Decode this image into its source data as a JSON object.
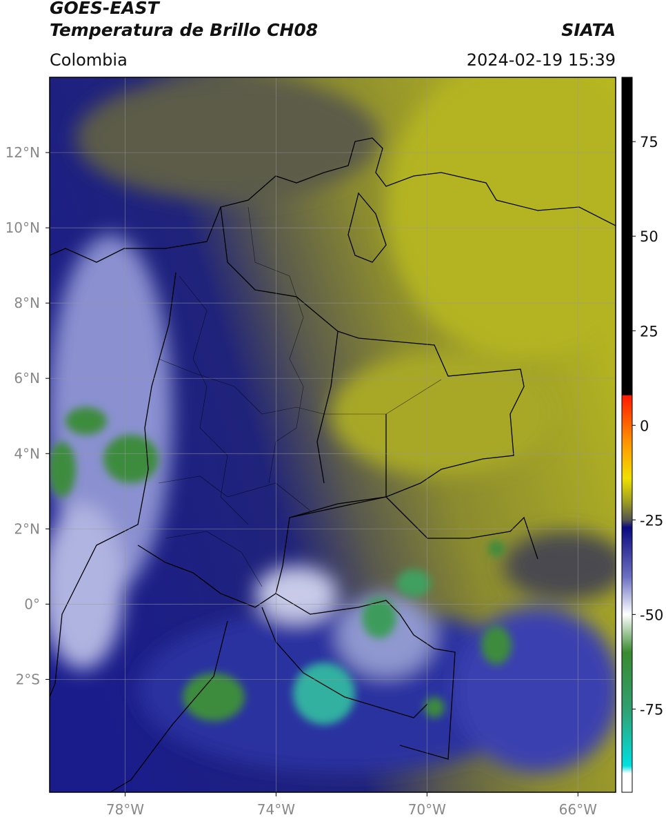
{
  "header": {
    "title": "GOES-EAST",
    "subtitle": "Temperatura de Brillo CH08",
    "source": "SIATA",
    "region": "Colombia",
    "datetime": "2024-02-19 15:39"
  },
  "map": {
    "lonlim": [
      -80,
      -65
    ],
    "latlim": [
      -5,
      14
    ],
    "grid": true,
    "lonticks": [
      {
        "value": -78,
        "label": "78°W"
      },
      {
        "value": -74,
        "label": "74°W"
      },
      {
        "value": -70,
        "label": "70°W"
      },
      {
        "value": -66,
        "label": "66°W"
      }
    ],
    "latticks": [
      {
        "value": 12,
        "label": "12°N"
      },
      {
        "value": 10,
        "label": "10°N"
      },
      {
        "value": 8,
        "label": "8°N"
      },
      {
        "value": 6,
        "label": "6°N"
      },
      {
        "value": 4,
        "label": "4°N"
      },
      {
        "value": 2,
        "label": "2°N"
      },
      {
        "value": 0,
        "label": "0°"
      },
      {
        "value": -2,
        "label": "2°S"
      }
    ]
  },
  "colorbar": {
    "clim": [
      -97,
      92
    ],
    "ticks": [
      75,
      50,
      25,
      0,
      -25,
      -50,
      -75
    ],
    "colormap": [
      {
        "value": 92,
        "color": "#000000"
      },
      {
        "value": 8,
        "color": "#000000"
      },
      {
        "value": 7.9,
        "color": "#ff1a00"
      },
      {
        "value": -5,
        "color": "#ff9900"
      },
      {
        "value": -14,
        "color": "#f0e000"
      },
      {
        "value": -20,
        "color": "#a0a020"
      },
      {
        "value": -25,
        "color": "#555550"
      },
      {
        "value": -27,
        "color": "#0a0a80"
      },
      {
        "value": -40,
        "color": "#6a70c0"
      },
      {
        "value": -50,
        "color": "#ffffff"
      },
      {
        "value": -60,
        "color": "#3a8a30"
      },
      {
        "value": -75,
        "color": "#30a070"
      },
      {
        "value": -90,
        "color": "#00e0e0"
      },
      {
        "value": -92,
        "color": "#ffffff"
      },
      {
        "value": -97,
        "color": "#ffffff"
      }
    ]
  }
}
